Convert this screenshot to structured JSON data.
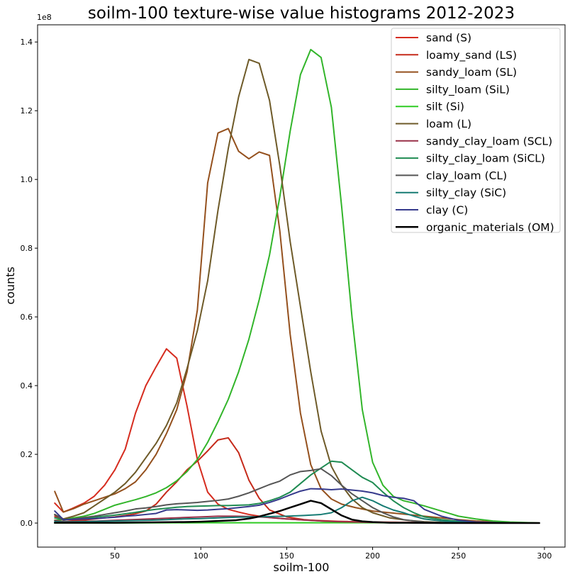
{
  "chart_data": {
    "type": "line",
    "title": "soilm-100 texture-wise value histograms 2012-2023",
    "xlabel": "soilm-100",
    "ylabel": "counts",
    "y_offset_label": "1e8",
    "xlim": [
      5,
      312
    ],
    "ylim": [
      -0.07,
      1.45
    ],
    "x_ticks": [
      50,
      100,
      150,
      200,
      250,
      300
    ],
    "x_tick_labels": [
      "50",
      "100",
      "150",
      "200",
      "250",
      "300"
    ],
    "y_ticks": [
      0.0,
      0.2,
      0.4,
      0.6,
      0.8,
      1.0,
      1.2,
      1.4
    ],
    "y_tick_labels": [
      "0.0",
      "0.2",
      "0.4",
      "0.6",
      "0.8",
      "1.0",
      "1.2",
      "1.4"
    ],
    "grid": false,
    "legend_position": "top-right",
    "series": [
      {
        "name": "sand (S)",
        "color": "#d62c1f",
        "width": 2,
        "x": [
          15,
          20,
          25,
          32,
          38,
          44,
          50,
          56,
          62,
          68,
          74,
          80,
          86,
          92,
          98,
          104,
          110,
          116,
          122,
          128,
          134,
          140,
          150,
          160,
          170,
          180,
          190,
          200,
          220,
          240,
          260,
          280,
          297
        ],
        "y": [
          0.058,
          0.032,
          0.042,
          0.058,
          0.078,
          0.11,
          0.155,
          0.215,
          0.32,
          0.4,
          0.455,
          0.507,
          0.48,
          0.34,
          0.185,
          0.09,
          0.055,
          0.04,
          0.032,
          0.025,
          0.02,
          0.016,
          0.012,
          0.009,
          0.007,
          0.005,
          0.004,
          0.003,
          0.002,
          0.001,
          0.001,
          0.0,
          0.0
        ]
      },
      {
        "name": "loamy_sand (LS)",
        "color": "#c52a1a",
        "width": 2,
        "x": [
          15,
          20,
          26,
          32,
          38,
          44,
          50,
          56,
          62,
          68,
          74,
          80,
          86,
          92,
          98,
          104,
          110,
          116,
          122,
          128,
          134,
          140,
          150,
          160,
          170,
          180,
          190,
          200,
          220,
          240,
          260,
          280,
          297
        ],
        "y": [
          0.02,
          0.01,
          0.008,
          0.009,
          0.012,
          0.015,
          0.018,
          0.022,
          0.027,
          0.035,
          0.055,
          0.09,
          0.12,
          0.155,
          0.18,
          0.21,
          0.242,
          0.248,
          0.205,
          0.125,
          0.072,
          0.038,
          0.018,
          0.01,
          0.006,
          0.004,
          0.003,
          0.002,
          0.001,
          0.0,
          0.0,
          0.0,
          0.0
        ]
      },
      {
        "name": "sandy_loam (SL)",
        "color": "#94501d",
        "width": 2,
        "x": [
          15,
          20,
          26,
          32,
          38,
          44,
          50,
          56,
          62,
          68,
          74,
          80,
          86,
          92,
          98,
          104,
          110,
          116,
          122,
          128,
          134,
          140,
          146,
          152,
          158,
          164,
          170,
          176,
          182,
          190,
          200,
          210,
          220,
          230,
          240,
          250,
          260,
          280,
          297
        ],
        "y": [
          0.092,
          0.032,
          0.042,
          0.055,
          0.065,
          0.075,
          0.085,
          0.1,
          0.12,
          0.155,
          0.2,
          0.26,
          0.33,
          0.44,
          0.62,
          0.99,
          1.135,
          1.148,
          1.082,
          1.06,
          1.08,
          1.07,
          0.85,
          0.55,
          0.32,
          0.17,
          0.1,
          0.07,
          0.055,
          0.045,
          0.035,
          0.03,
          0.025,
          0.02,
          0.015,
          0.01,
          0.006,
          0.002,
          0.0
        ]
      },
      {
        "name": "silty_loam (SiL)",
        "color": "#32b52a",
        "width": 2,
        "x": [
          15,
          20,
          26,
          32,
          38,
          44,
          50,
          56,
          62,
          68,
          74,
          80,
          86,
          92,
          98,
          104,
          110,
          116,
          122,
          128,
          134,
          140,
          146,
          152,
          158,
          164,
          170,
          176,
          182,
          188,
          194,
          200,
          206,
          212,
          218,
          224,
          230,
          240,
          250,
          260,
          270,
          280,
          297
        ],
        "y": [
          0.008,
          0.01,
          0.015,
          0.02,
          0.028,
          0.04,
          0.052,
          0.06,
          0.068,
          0.077,
          0.088,
          0.103,
          0.123,
          0.15,
          0.185,
          0.235,
          0.295,
          0.36,
          0.44,
          0.535,
          0.65,
          0.78,
          0.95,
          1.14,
          1.305,
          1.378,
          1.355,
          1.21,
          0.92,
          0.6,
          0.33,
          0.177,
          0.11,
          0.078,
          0.065,
          0.058,
          0.05,
          0.035,
          0.02,
          0.012,
          0.006,
          0.003,
          0.0
        ]
      },
      {
        "name": "silt (Si)",
        "color": "#2ecb23",
        "width": 2,
        "x": [
          15,
          50,
          100,
          150,
          200,
          250,
          297
        ],
        "y": [
          0.0,
          0.0,
          0.001,
          0.001,
          0.001,
          0.0,
          0.0
        ]
      },
      {
        "name": "loam (L)",
        "color": "#6e5a28",
        "width": 2,
        "x": [
          15,
          20,
          26,
          32,
          38,
          44,
          50,
          56,
          62,
          68,
          74,
          80,
          86,
          92,
          98,
          104,
          110,
          116,
          122,
          128,
          134,
          140,
          146,
          152,
          158,
          164,
          170,
          176,
          182,
          188,
          194,
          200,
          210,
          220,
          230,
          240,
          250,
          260,
          280,
          297
        ],
        "y": [
          0.025,
          0.012,
          0.02,
          0.03,
          0.05,
          0.07,
          0.09,
          0.115,
          0.148,
          0.19,
          0.232,
          0.284,
          0.35,
          0.45,
          0.56,
          0.705,
          0.91,
          1.09,
          1.24,
          1.349,
          1.338,
          1.23,
          1.04,
          0.82,
          0.63,
          0.44,
          0.268,
          0.165,
          0.11,
          0.07,
          0.045,
          0.03,
          0.015,
          0.008,
          0.004,
          0.002,
          0.001,
          0.0,
          0.0,
          0.0
        ]
      },
      {
        "name": "sandy_clay_loam (SCL)",
        "color": "#993048",
        "width": 2,
        "x": [
          15,
          20,
          30,
          40,
          50,
          60,
          70,
          80,
          90,
          100,
          110,
          120,
          130,
          140,
          150,
          160,
          170,
          180,
          190,
          200,
          210,
          220,
          240,
          260,
          280,
          297
        ],
        "y": [
          0.008,
          0.004,
          0.005,
          0.006,
          0.008,
          0.01,
          0.012,
          0.014,
          0.016,
          0.018,
          0.02,
          0.02,
          0.019,
          0.016,
          0.012,
          0.009,
          0.006,
          0.004,
          0.003,
          0.002,
          0.001,
          0.001,
          0.0,
          0.0,
          0.0,
          0.0
        ]
      },
      {
        "name": "silty_clay_loam (SiCL)",
        "color": "#1f8b52",
        "width": 2,
        "x": [
          15,
          20,
          26,
          32,
          38,
          44,
          50,
          56,
          62,
          68,
          74,
          80,
          86,
          92,
          98,
          104,
          110,
          116,
          122,
          128,
          134,
          140,
          146,
          152,
          158,
          164,
          170,
          176,
          182,
          188,
          194,
          200,
          206,
          212,
          218,
          224,
          230,
          240,
          250,
          260,
          280,
          297
        ],
        "y": [
          0.015,
          0.01,
          0.012,
          0.014,
          0.017,
          0.02,
          0.023,
          0.027,
          0.031,
          0.036,
          0.04,
          0.043,
          0.046,
          0.048,
          0.049,
          0.05,
          0.051,
          0.051,
          0.052,
          0.053,
          0.057,
          0.065,
          0.075,
          0.09,
          0.115,
          0.14,
          0.16,
          0.18,
          0.177,
          0.155,
          0.133,
          0.118,
          0.09,
          0.065,
          0.045,
          0.03,
          0.018,
          0.01,
          0.005,
          0.002,
          0.0,
          0.0
        ]
      },
      {
        "name": "clay_loam (CL)",
        "color": "#555555",
        "width": 2,
        "x": [
          15,
          20,
          26,
          32,
          38,
          44,
          50,
          56,
          62,
          68,
          74,
          80,
          86,
          92,
          98,
          104,
          110,
          116,
          122,
          128,
          134,
          140,
          146,
          152,
          158,
          164,
          170,
          176,
          182,
          188,
          194,
          200,
          206,
          212,
          218,
          224,
          230,
          240,
          260,
          280,
          297
        ],
        "y": [
          0.025,
          0.008,
          0.012,
          0.016,
          0.02,
          0.025,
          0.03,
          0.035,
          0.041,
          0.044,
          0.048,
          0.053,
          0.056,
          0.058,
          0.06,
          0.063,
          0.066,
          0.07,
          0.078,
          0.088,
          0.1,
          0.112,
          0.122,
          0.14,
          0.15,
          0.153,
          0.158,
          0.138,
          0.11,
          0.085,
          0.065,
          0.045,
          0.03,
          0.018,
          0.01,
          0.006,
          0.003,
          0.001,
          0.0,
          0.0,
          0.0
        ]
      },
      {
        "name": "silty_clay (SiC)",
        "color": "#167b73",
        "width": 2,
        "x": [
          15,
          20,
          30,
          40,
          50,
          60,
          70,
          80,
          90,
          100,
          110,
          120,
          130,
          140,
          150,
          160,
          170,
          176,
          182,
          188,
          194,
          200,
          206,
          212,
          218,
          224,
          230,
          240,
          250,
          260,
          280,
          297
        ],
        "y": [
          0.005,
          0.003,
          0.004,
          0.005,
          0.006,
          0.007,
          0.008,
          0.01,
          0.012,
          0.013,
          0.015,
          0.017,
          0.018,
          0.019,
          0.02,
          0.022,
          0.025,
          0.03,
          0.045,
          0.065,
          0.075,
          0.065,
          0.05,
          0.038,
          0.03,
          0.02,
          0.012,
          0.006,
          0.003,
          0.001,
          0.0,
          0.0
        ]
      },
      {
        "name": "clay (C)",
        "color": "#363a8c",
        "width": 2,
        "x": [
          15,
          20,
          26,
          32,
          38,
          44,
          50,
          56,
          62,
          68,
          74,
          80,
          86,
          92,
          98,
          104,
          110,
          116,
          122,
          128,
          134,
          140,
          146,
          152,
          158,
          164,
          170,
          176,
          182,
          188,
          194,
          200,
          206,
          212,
          218,
          224,
          230,
          240,
          250,
          260,
          280,
          297
        ],
        "y": [
          0.035,
          0.01,
          0.011,
          0.012,
          0.013,
          0.015,
          0.017,
          0.02,
          0.022,
          0.025,
          0.028,
          0.038,
          0.039,
          0.038,
          0.037,
          0.038,
          0.04,
          0.042,
          0.045,
          0.048,
          0.052,
          0.06,
          0.07,
          0.082,
          0.093,
          0.1,
          0.099,
          0.097,
          0.099,
          0.096,
          0.093,
          0.088,
          0.08,
          0.075,
          0.072,
          0.065,
          0.04,
          0.02,
          0.008,
          0.003,
          0.0,
          0.0
        ]
      },
      {
        "name": "organic_materials (OM)",
        "color": "#000000",
        "width": 2.5,
        "x": [
          15,
          30,
          50,
          70,
          90,
          100,
          110,
          120,
          128,
          134,
          140,
          146,
          152,
          158,
          164,
          170,
          176,
          182,
          188,
          194,
          200,
          210,
          220,
          240,
          260,
          280,
          297
        ],
        "y": [
          0.001,
          0.001,
          0.001,
          0.002,
          0.003,
          0.004,
          0.006,
          0.008,
          0.013,
          0.019,
          0.027,
          0.035,
          0.045,
          0.055,
          0.065,
          0.058,
          0.04,
          0.022,
          0.01,
          0.005,
          0.003,
          0.001,
          0.001,
          0.0,
          0.0,
          0.0,
          0.0
        ]
      }
    ]
  }
}
